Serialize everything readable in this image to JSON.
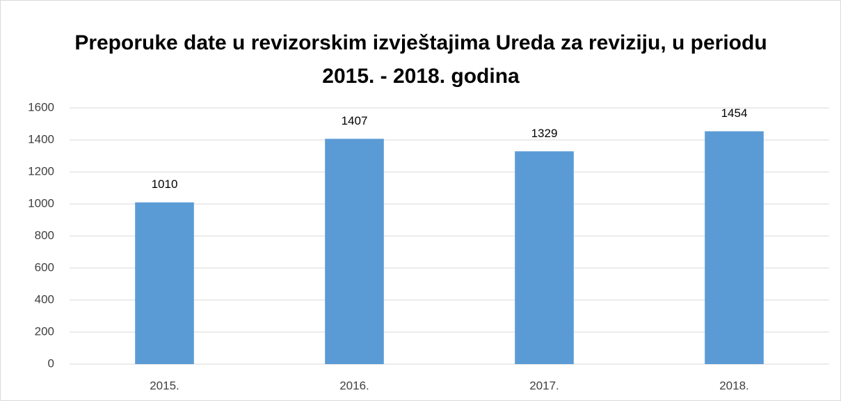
{
  "chart_data": {
    "type": "bar",
    "title": "Preporuke date u revizorskim izvještajima Ureda za reviziju, u periodu 2015. - 2018. godina",
    "categories": [
      "2015.",
      "2016.",
      "2017.",
      "2018."
    ],
    "values": [
      1010,
      1407,
      1329,
      1454
    ],
    "color": "#5b9bd5",
    "ylim": [
      0,
      1600
    ],
    "yticks": [
      0,
      200,
      400,
      600,
      800,
      1000,
      1200,
      1400,
      1600
    ],
    "grid": true
  }
}
